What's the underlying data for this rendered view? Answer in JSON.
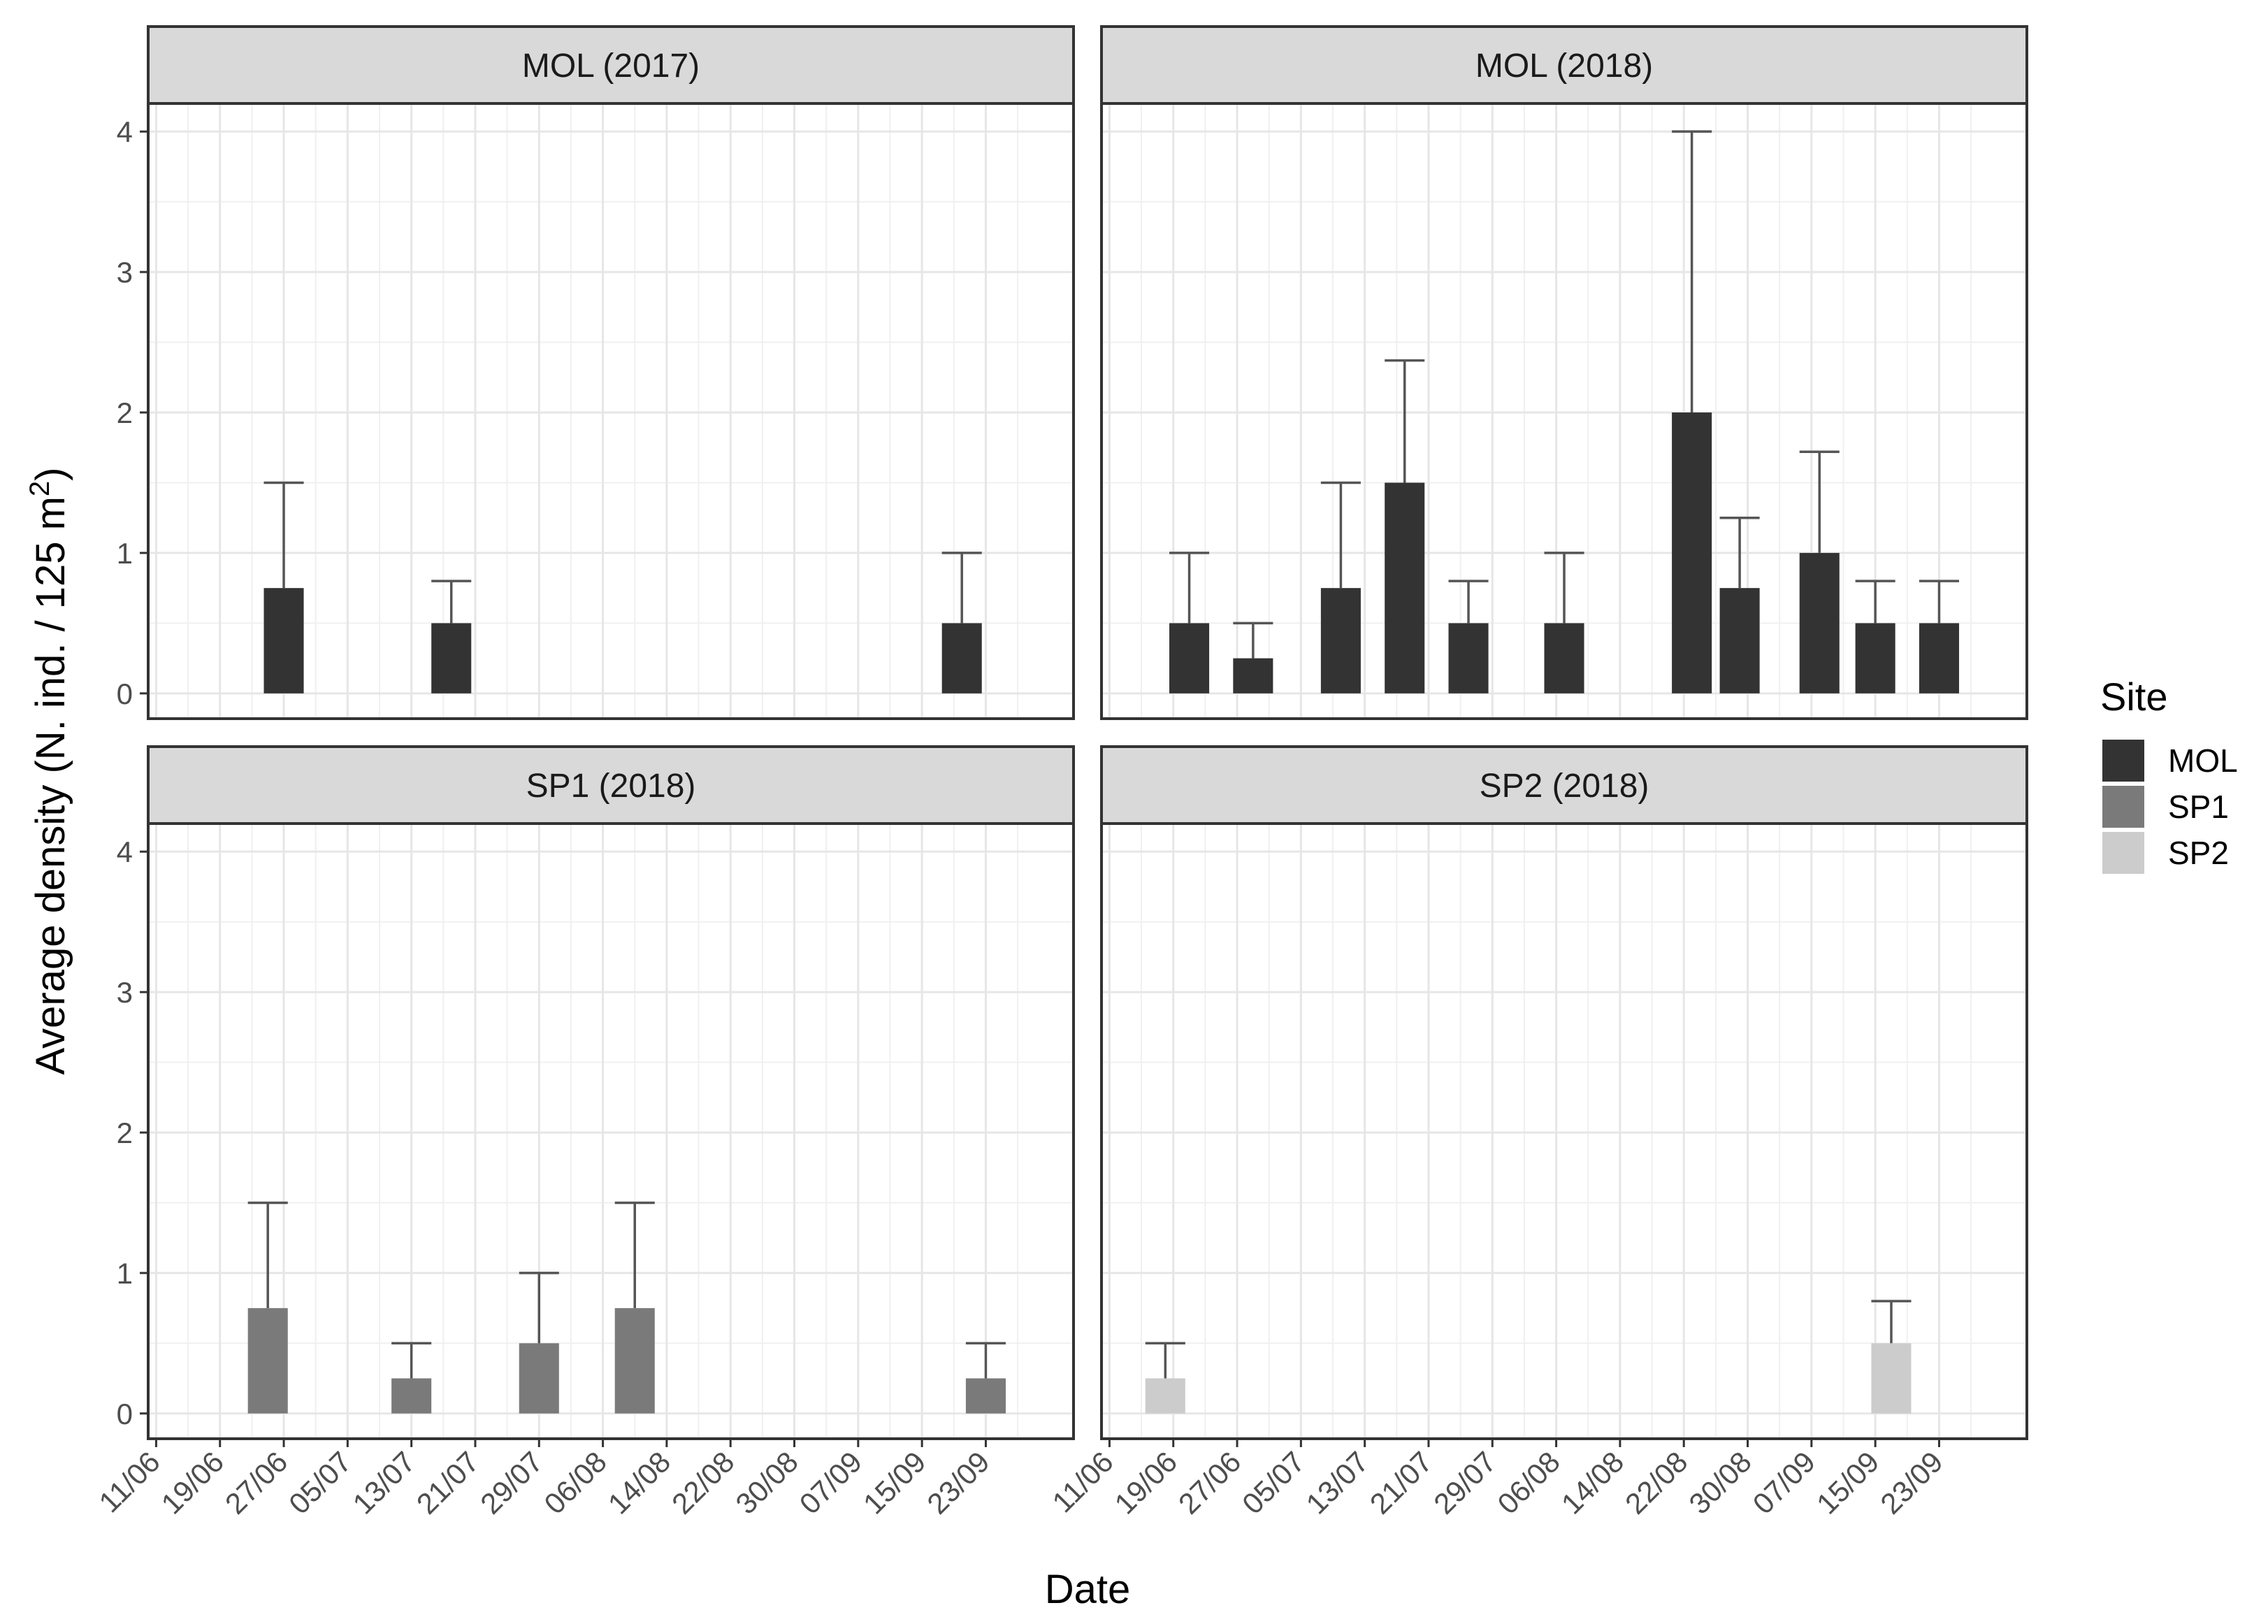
{
  "chart_data": {
    "type": "bar",
    "xlabel": "Date",
    "ylabel": "Average density (N. ind. / 125 m²)",
    "ylabel_parts": {
      "main": "Average density (N. ind. / 125 m",
      "sup": "2",
      "close": ")"
    },
    "ylim": [
      -0.18,
      4.2
    ],
    "y_ticks": [
      0,
      1,
      2,
      3,
      4
    ],
    "x_ticks": [
      "11/06",
      "19/06",
      "27/06",
      "05/07",
      "13/07",
      "21/07",
      "29/07",
      "06/08",
      "14/08",
      "22/08",
      "30/08",
      "07/09",
      "15/09",
      "23/09"
    ],
    "x_range_days": [
      -1,
      115
    ],
    "x_tick_day_offsets": [
      0,
      8,
      16,
      24,
      32,
      40,
      48,
      56,
      64,
      72,
      80,
      88,
      96,
      104
    ],
    "x_day_origin": "11/06",
    "bar_width_days": 5,
    "grid": true,
    "legend": {
      "title": "Site",
      "position": "right",
      "items": [
        {
          "name": "MOL",
          "color": "#333333"
        },
        {
          "name": "SP1",
          "color": "#7a7a7a"
        },
        {
          "name": "SP2",
          "color": "#cccccc"
        }
      ]
    },
    "panels": [
      {
        "title": "MOL (2017)",
        "site": "MOL",
        "color": "#333333",
        "bars": [
          {
            "day": 16,
            "value": 0.75,
            "error_upper": 1.5
          },
          {
            "day": 37,
            "value": 0.5,
            "error_upper": 0.8
          },
          {
            "day": 101,
            "value": 0.5,
            "error_upper": 1.0
          }
        ]
      },
      {
        "title": "MOL (2018)",
        "site": "MOL",
        "color": "#333333",
        "bars": [
          {
            "day": 10,
            "value": 0.5,
            "error_upper": 1.0
          },
          {
            "day": 18,
            "value": 0.25,
            "error_upper": 0.5
          },
          {
            "day": 29,
            "value": 0.75,
            "error_upper": 1.5
          },
          {
            "day": 37,
            "value": 1.5,
            "error_upper": 2.37
          },
          {
            "day": 45,
            "value": 0.5,
            "error_upper": 0.8
          },
          {
            "day": 57,
            "value": 0.5,
            "error_upper": 1.0
          },
          {
            "day": 73,
            "value": 2.0,
            "error_upper": 4.0
          },
          {
            "day": 79,
            "value": 0.75,
            "error_upper": 1.25
          },
          {
            "day": 89,
            "value": 1.0,
            "error_upper": 1.72
          },
          {
            "day": 96,
            "value": 0.5,
            "error_upper": 0.8
          },
          {
            "day": 104,
            "value": 0.5,
            "error_upper": 0.8
          }
        ]
      },
      {
        "title": "SP1 (2018)",
        "site": "SP1",
        "color": "#7a7a7a",
        "bars": [
          {
            "day": 14,
            "value": 0.75,
            "error_upper": 1.5
          },
          {
            "day": 32,
            "value": 0.25,
            "error_upper": 0.5
          },
          {
            "day": 48,
            "value": 0.5,
            "error_upper": 1.0
          },
          {
            "day": 60,
            "value": 0.75,
            "error_upper": 1.5
          },
          {
            "day": 104,
            "value": 0.25,
            "error_upper": 0.5
          }
        ]
      },
      {
        "title": "SP2 (2018)",
        "site": "SP2",
        "color": "#cccccc",
        "bars": [
          {
            "day": 7,
            "value": 0.25,
            "error_upper": 0.5
          },
          {
            "day": 98,
            "value": 0.5,
            "error_upper": 0.8
          }
        ]
      }
    ]
  }
}
